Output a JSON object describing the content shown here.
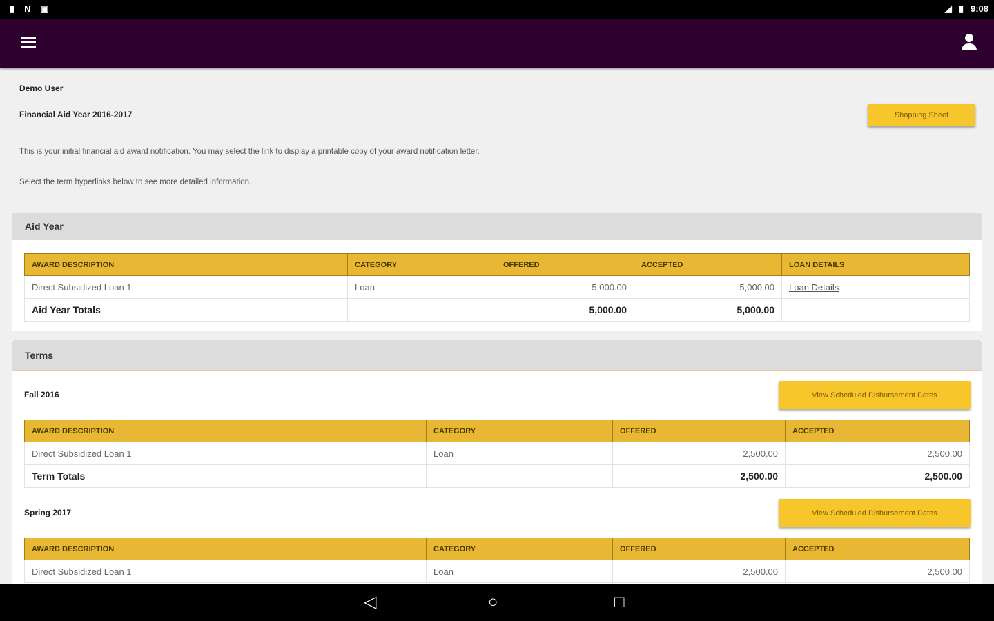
{
  "status_bar": {
    "time": "9:08"
  },
  "header": {
    "user": "Demo User",
    "aid_year": "Financial Aid Year 2016-2017",
    "shopping_sheet": "Shopping Sheet"
  },
  "intro": {
    "line1": "This is your initial financial aid award notification.  You may select the link to display a printable copy of your award notification letter.",
    "line2": "Select the term hyperlinks below to see more detailed information."
  },
  "aid_year": {
    "title": "Aid Year",
    "columns": [
      "AWARD DESCRIPTION",
      "CATEGORY",
      "OFFERED",
      "ACCEPTED",
      "LOAN DETAILS"
    ],
    "rows": [
      {
        "desc": "Direct Subsidized Loan 1",
        "cat": "Loan",
        "offered": "5,000.00",
        "accepted": "5,000.00",
        "link": "Loan Details"
      }
    ],
    "totals": {
      "label": "Aid Year Totals",
      "offered": "5,000.00",
      "accepted": "5,000.00"
    }
  },
  "terms": {
    "title": "Terms",
    "button": "View Scheduled Disbursement Dates",
    "columns": [
      "AWARD DESCRIPTION",
      "CATEGORY",
      "OFFERED",
      "ACCEPTED"
    ],
    "items": [
      {
        "name": "Fall 2016",
        "rows": [
          {
            "desc": "Direct Subsidized Loan 1",
            "cat": "Loan",
            "offered": "2,500.00",
            "accepted": "2,500.00"
          }
        ],
        "totals": {
          "label": "Term Totals",
          "offered": "2,500.00",
          "accepted": "2,500.00"
        }
      },
      {
        "name": "Spring 2017",
        "rows": [
          {
            "desc": "Direct Subsidized Loan 1",
            "cat": "Loan",
            "offered": "2,500.00",
            "accepted": "2,500.00"
          }
        ]
      }
    ]
  },
  "colors": {
    "appbar": "#2d0030",
    "accent": "#f7c62a",
    "table_header": "#e8b834"
  }
}
